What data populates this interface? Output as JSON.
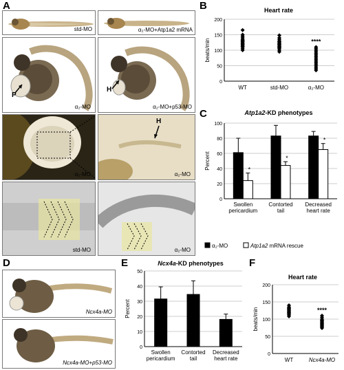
{
  "panel_labels": {
    "A": "A",
    "B": "B",
    "C": "C",
    "D": "D",
    "E": "E",
    "F": "F"
  },
  "panelA": {
    "captions": {
      "r1_left": "std-MO",
      "r1_right": "α₂-MO+Atp1a2 mRNA",
      "r2_left": "α₂-MO",
      "r2_right": "α₂-MO+p53-MO",
      "r3_left": "α₂-MO",
      "r3_right": "α₂-MO",
      "r4_left": "std-MO",
      "r4_right": "α₂-MO"
    },
    "annotations": {
      "P": "P",
      "H1": "H",
      "H2": "H"
    }
  },
  "panelD": {
    "captions": {
      "top": "Ncx4a-MO",
      "bottom": "Ncx4a-MO+p53-MO"
    }
  },
  "chart_data": [
    {
      "id": "B",
      "type": "scatter",
      "title": "Heart rate",
      "ylabel": "beats/min",
      "ylim": [
        0,
        200
      ],
      "yticks": [
        0,
        50,
        100,
        150,
        200
      ],
      "categories": [
        "WT",
        "std-MO",
        "α₂-MO"
      ],
      "marker": "diamond",
      "series": [
        {
          "category": "WT",
          "values": [
            165,
            150,
            145,
            140,
            135,
            132,
            130,
            128,
            125,
            122,
            120,
            118,
            115,
            112,
            110,
            105,
            100
          ]
        },
        {
          "category": "std-MO",
          "values": [
            148,
            140,
            135,
            130,
            128,
            125,
            122,
            120,
            118,
            115,
            112,
            110,
            108,
            105,
            100,
            95
          ]
        },
        {
          "category": "α₂-MO",
          "values": [
            110,
            105,
            100,
            95,
            90,
            85,
            80,
            75,
            70,
            65,
            60,
            55,
            50,
            45,
            40,
            35
          ]
        }
      ],
      "annotations": [
        {
          "category": "α₂-MO",
          "text": "****"
        }
      ]
    },
    {
      "id": "C",
      "type": "bar",
      "title": "-KD phenotypes",
      "title_italic": "Atp1a2",
      "ylabel": "Percent",
      "ylim": [
        0,
        100
      ],
      "yticks": [
        0,
        20,
        40,
        60,
        80,
        100
      ],
      "categories": [
        "Swollen pericardium",
        "Contorted tail",
        "Decreased heart rate"
      ],
      "category_lines": [
        [
          "Swollen",
          "pericardium"
        ],
        [
          "Contorted",
          "tail"
        ],
        [
          "Decreased",
          "heart rate"
        ]
      ],
      "series": [
        {
          "name": "α₂-MO",
          "color": "#000000",
          "values": [
            61,
            83,
            83
          ],
          "errors": [
            19,
            14,
            6
          ]
        },
        {
          "name": " mRNA rescue",
          "name_italic": "Atp1a2",
          "color": "#ffffff",
          "values": [
            24,
            44,
            65
          ],
          "errors": [
            10,
            5,
            8
          ]
        }
      ],
      "annotations": [
        "*",
        "*",
        "*"
      ],
      "legend": "bottom"
    },
    {
      "id": "E",
      "type": "bar",
      "title": "-KD phenotypes",
      "title_italic": "Ncx4a",
      "ylabel": "Percent",
      "ylim": [
        0,
        50
      ],
      "yticks": [
        0,
        10,
        20,
        30,
        40,
        50
      ],
      "categories": [
        "Swollen pericardium",
        "Contorted tail",
        "Decreased heart rate"
      ],
      "category_lines": [
        [
          "Swollen",
          "pericardium"
        ],
        [
          "Contorted",
          "tail"
        ],
        [
          "Decreased",
          "heart rate"
        ]
      ],
      "series": [
        {
          "name": "",
          "color": "#000000",
          "values": [
            31.5,
            34.5,
            18
          ],
          "errors": [
            8,
            9,
            3.5
          ]
        }
      ]
    },
    {
      "id": "F",
      "type": "scatter",
      "title": "Heart rate",
      "ylabel": "beats/min",
      "ylim": [
        0,
        200
      ],
      "yticks": [
        0,
        50,
        100,
        150,
        200
      ],
      "categories": [
        "WT",
        "Ncx4a-MO"
      ],
      "marker": "diamond",
      "series": [
        {
          "category": "WT",
          "values": [
            140,
            135,
            132,
            130,
            128,
            125,
            122,
            120,
            118,
            115,
            112,
            108
          ]
        },
        {
          "category": "Ncx4a-MO",
          "values": [
            110,
            105,
            100,
            97,
            95,
            92,
            90,
            87,
            85,
            82,
            80,
            77,
            74
          ]
        }
      ],
      "annotations": [
        {
          "category": "Ncx4a-MO",
          "text": "****"
        }
      ]
    }
  ]
}
